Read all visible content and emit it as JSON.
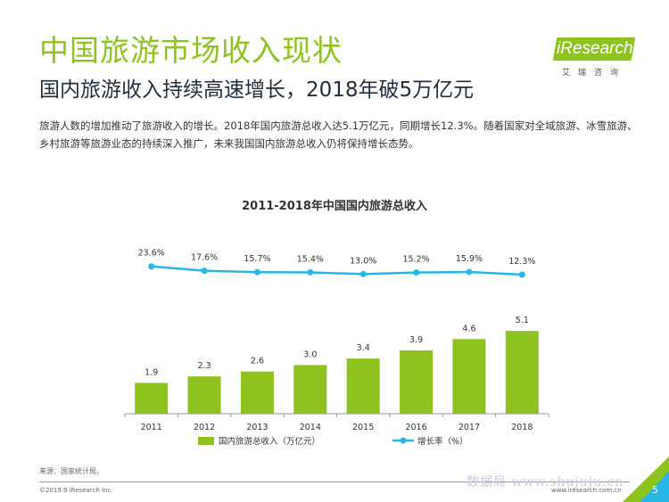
{
  "header": {
    "title": "中国旅游市场收入现状",
    "subtitle": "国内旅游收入持续高速增长，2018年破5万亿元",
    "description": "旅游人数的增加推动了旅游收入的增长。2018年国内旅游总收入达5.1万亿元，同期增长12.3%。随着国家对全域旅游、冰雪旅游、乡村旅游等旅游业态的持续深入推广，未来我国国内旅游总收入仍将保持增长态势。"
  },
  "logo": {
    "brand": "iResearch",
    "tagline": "艾瑞咨询"
  },
  "chart_data": {
    "type": "bar+line",
    "title": "2011-2018年中国国内旅游总收入",
    "categories": [
      "2011",
      "2012",
      "2013",
      "2014",
      "2015",
      "2016",
      "2017",
      "2018"
    ],
    "series": [
      {
        "name": "国内旅游总收入（万亿元）",
        "type": "bar",
        "values": [
          1.9,
          2.3,
          2.6,
          3.0,
          3.4,
          3.9,
          4.6,
          5.1
        ],
        "labels": [
          "1.9",
          "2.3",
          "2.6",
          "3.0",
          "3.4",
          "3.9",
          "4.6",
          "5.1"
        ],
        "color": "#8dc21f"
      },
      {
        "name": "增长率（%）",
        "type": "line",
        "values": [
          23.6,
          17.6,
          15.7,
          15.4,
          13.0,
          15.2,
          15.9,
          12.3
        ],
        "labels": [
          "23.6%",
          "17.6%",
          "15.7%",
          "15.4%",
          "13.0%",
          "15.2%",
          "15.9%",
          "12.3%"
        ],
        "color": "#26b7e4"
      }
    ],
    "bar_ylim": [
      0,
      6
    ],
    "line_ylim": [
      0,
      100
    ],
    "legend": "bottom-center"
  },
  "footer": {
    "source": "来源：国家统计局。",
    "copyright": "©2019.9 iResearch Inc.",
    "website": "www.iresearch.com.cn",
    "page": "5",
    "watermark": "数据局 www.shujuju.cn"
  }
}
